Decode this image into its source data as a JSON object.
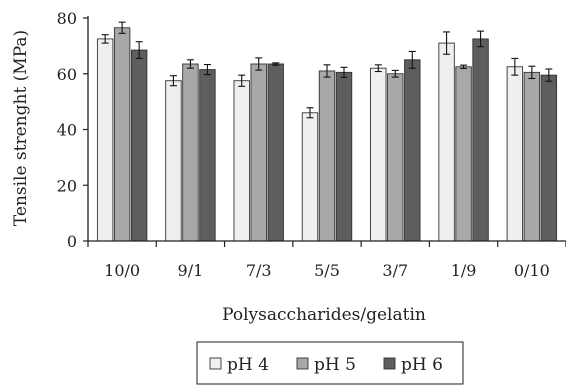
{
  "chart_data": {
    "type": "bar",
    "title": "",
    "xlabel": "Polysaccharides/gelatin",
    "ylabel": "Tensile strenght (MPa)",
    "ylim": [
      0,
      80
    ],
    "yticks": [
      0,
      20,
      40,
      60,
      80
    ],
    "categories": [
      "10/0",
      "9/1",
      "7/3",
      "5/5",
      "3/7",
      "1/9",
      "0/10"
    ],
    "series": [
      {
        "name": "pH 4",
        "color": "#efefef",
        "values": [
          72.5,
          57.5,
          57.5,
          46.0,
          62.0,
          71.0,
          62.5
        ],
        "errors": [
          1.5,
          1.8,
          2.0,
          1.8,
          1.2,
          4.0,
          3.0
        ]
      },
      {
        "name": "pH 5",
        "color": "#a8a8a8",
        "values": [
          76.5,
          63.5,
          63.5,
          61.0,
          60.0,
          62.5,
          60.5
        ],
        "errors": [
          2.0,
          1.5,
          2.2,
          2.2,
          1.2,
          0.6,
          2.2
        ]
      },
      {
        "name": "pH 6",
        "color": "#5e5e5e",
        "values": [
          68.5,
          61.5,
          63.5,
          60.5,
          65.0,
          72.5,
          59.5
        ],
        "errors": [
          3.0,
          1.8,
          0.4,
          1.8,
          3.0,
          2.8,
          2.2
        ]
      }
    ],
    "legend_position": "bottom-center",
    "grid": false
  }
}
